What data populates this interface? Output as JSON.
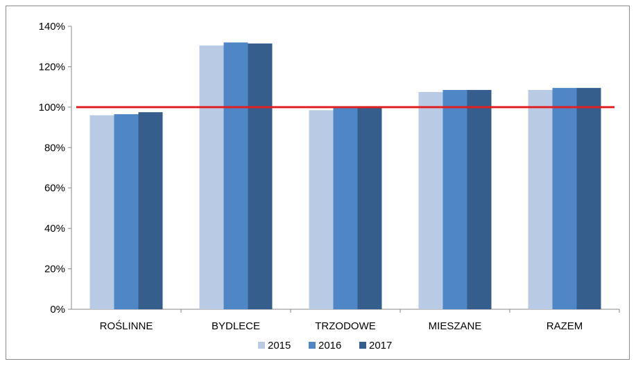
{
  "chart_data": {
    "type": "bar",
    "categories": [
      "ROŚLINNE",
      "BYDLECE",
      "TRZODOWE",
      "MIESZANE",
      "RAZEM"
    ],
    "series": [
      {
        "name": "2015",
        "color": "#b9cbe4",
        "values": [
          96,
          130.5,
          98.5,
          107.5,
          108.5
        ]
      },
      {
        "name": "2016",
        "color": "#4f86c6",
        "values": [
          96.5,
          132,
          100,
          108.5,
          109.5
        ]
      },
      {
        "name": "2017",
        "color": "#355e8d",
        "values": [
          97.5,
          131.5,
          100,
          108.5,
          109.5
        ]
      }
    ],
    "reference_line": {
      "value": 100,
      "color": "#e02020"
    },
    "ylim": [
      0,
      140
    ],
    "y_ticks": [
      "0%",
      "20%",
      "40%",
      "60%",
      "80%",
      "100%",
      "120%",
      "140%"
    ],
    "y_tick_values": [
      0,
      20,
      40,
      60,
      80,
      100,
      120,
      140
    ],
    "grid": false,
    "legend_position": "bottom",
    "title": "",
    "xlabel": "",
    "ylabel": ""
  }
}
